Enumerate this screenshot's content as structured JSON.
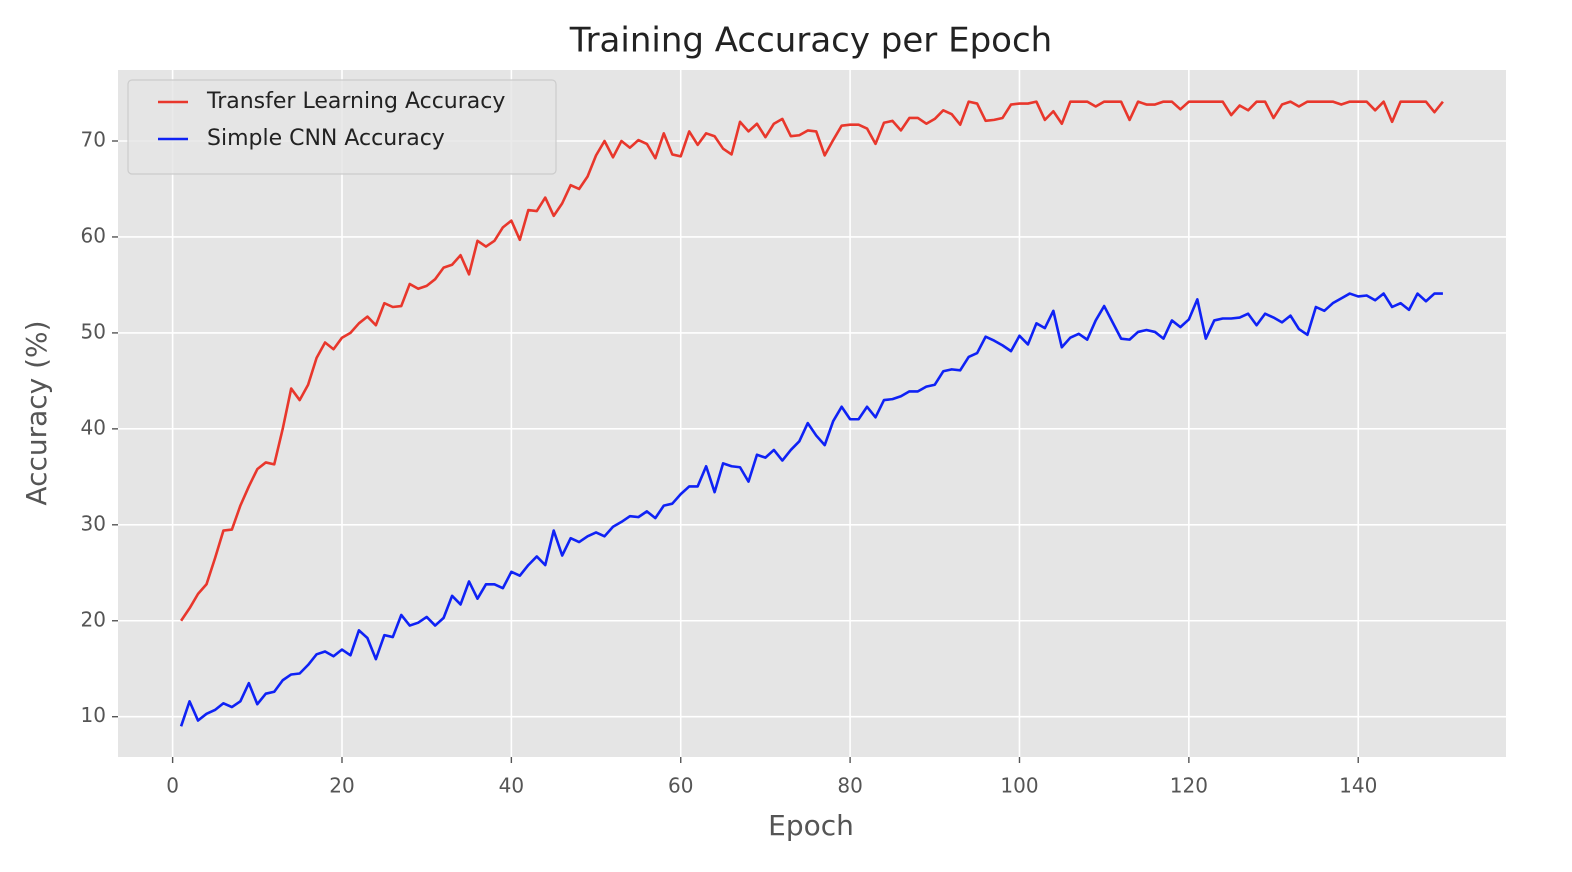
{
  "chart_data": {
    "type": "line",
    "title": "Training Accuracy per Epoch",
    "x_label": "Epoch",
    "y_label": "Accuracy (%)",
    "x": [
      1,
      2,
      3,
      4,
      5,
      6,
      7,
      8,
      9,
      10,
      11,
      12,
      13,
      14,
      15,
      16,
      17,
      18,
      19,
      20,
      21,
      22,
      23,
      24,
      25,
      26,
      27,
      28,
      29,
      30,
      31,
      32,
      33,
      34,
      35,
      36,
      37,
      38,
      39,
      40,
      41,
      42,
      43,
      44,
      45,
      46,
      47,
      48,
      49,
      50,
      51,
      52,
      53,
      54,
      55,
      56,
      57,
      58,
      59,
      60,
      61,
      62,
      63,
      64,
      65,
      66,
      67,
      68,
      69,
      70,
      71,
      72,
      73,
      74,
      75,
      76,
      77,
      78,
      79,
      80,
      81,
      82,
      83,
      84,
      85,
      86,
      87,
      88,
      89,
      90,
      91,
      92,
      93,
      94,
      95,
      96,
      97,
      98,
      99,
      100,
      101,
      102,
      103,
      104,
      105,
      106,
      107,
      108,
      109,
      110,
      111,
      112,
      113,
      114,
      115,
      116,
      117,
      118,
      119,
      120,
      121,
      122,
      123,
      124,
      125,
      126,
      127,
      128,
      129,
      130,
      131,
      132,
      133,
      134,
      135,
      136,
      137,
      138,
      139,
      140,
      141,
      142,
      143,
      144,
      145,
      146,
      147,
      148,
      149,
      150
    ],
    "series": [
      {
        "name": "Transfer Learning Accuracy",
        "color": "#e8372c",
        "values": [
          20,
          21.3,
          22.8,
          23.8,
          26.5,
          29.4,
          29.5,
          32,
          34,
          35.8,
          36.5,
          36.3,
          40,
          44.2,
          43,
          44.6,
          47.4,
          49,
          48.3,
          49.5,
          50,
          51,
          51.7,
          50.8,
          53.1,
          52.7,
          52.8,
          55.1,
          54.6,
          54.9,
          55.6,
          56.8,
          57.1,
          58.1,
          56.1,
          59.6,
          59,
          59.6,
          61,
          61.7,
          59.7,
          62.8,
          62.7,
          64.1,
          62.2,
          63.5,
          65.4,
          65,
          66.3,
          68.5,
          70,
          68.3,
          70,
          69.3,
          70.1,
          69.7,
          68.2,
          70.8,
          68.6,
          68.4,
          71,
          69.6,
          70.8,
          70.5,
          69.2,
          68.6,
          72,
          71,
          71.8,
          70.4,
          71.8,
          72.3,
          70.5,
          70.6,
          71.1,
          71,
          68.5,
          70.1,
          71.6,
          71.7,
          71.7,
          71.3,
          69.7,
          71.9,
          72.1,
          71.1,
          72.4,
          72.4,
          71.8,
          72.3,
          73.2,
          72.8,
          71.7,
          74.1,
          73.9,
          72.1,
          72.2,
          72.4,
          73.8,
          73.9,
          73.9,
          74.1,
          72.2,
          73.1,
          71.8,
          74.1,
          74.1,
          74.1,
          73.6,
          74.1,
          74.1,
          74.1,
          72.2,
          74.1,
          73.8,
          73.8,
          74.1,
          74.1,
          73.3,
          74.1,
          74.1,
          74.1,
          74.1,
          74.1,
          72.7,
          73.7,
          73.2,
          74.1,
          74.1,
          72.4,
          73.8,
          74.1,
          73.6,
          74.1,
          74.1,
          74.1,
          74.1,
          73.8,
          74.1,
          74.1,
          74.1,
          73.2,
          74.1,
          72,
          74.1,
          74.1,
          74.1,
          74.1,
          73,
          74.1
        ]
      },
      {
        "name": "Simple CNN Accuracy",
        "color": "#0f22f5",
        "values": [
          9,
          11.6,
          9.6,
          10.3,
          10.7,
          11.4,
          11,
          11.6,
          13.5,
          11.3,
          12.4,
          12.6,
          13.8,
          14.4,
          14.5,
          15.4,
          16.5,
          16.8,
          16.3,
          17,
          16.4,
          19,
          18.2,
          16,
          18.5,
          18.3,
          20.6,
          19.5,
          19.8,
          20.4,
          19.5,
          20.3,
          22.6,
          21.7,
          24.1,
          22.3,
          23.8,
          23.8,
          23.4,
          25.1,
          24.7,
          25.8,
          26.7,
          25.8,
          29.4,
          26.8,
          28.6,
          28.2,
          28.8,
          29.2,
          28.8,
          29.8,
          30.3,
          30.9,
          30.8,
          31.4,
          30.7,
          32,
          32.2,
          33.2,
          34,
          34,
          36.1,
          33.4,
          36.4,
          36.1,
          36,
          34.5,
          37.3,
          37,
          37.8,
          36.7,
          37.8,
          38.7,
          40.6,
          39.3,
          38.3,
          40.8,
          42.3,
          41,
          41,
          42.3,
          41.2,
          43,
          43.1,
          43.4,
          43.9,
          43.9,
          44.4,
          44.6,
          46,
          46.2,
          46.1,
          47.5,
          47.9,
          49.6,
          49.2,
          48.7,
          48.1,
          49.7,
          48.8,
          51,
          50.5,
          52.3,
          48.5,
          49.5,
          49.9,
          49.3,
          51.3,
          52.8,
          51.1,
          49.4,
          49.3,
          50.1,
          50.3,
          50.1,
          49.4,
          51.3,
          50.6,
          51.4,
          53.5,
          49.4,
          51.3,
          51.5,
          51.5,
          51.6,
          52,
          50.8,
          52,
          51.6,
          51.1,
          51.8,
          50.4,
          49.8,
          52.7,
          52.3,
          53.1,
          53.6,
          54.1,
          53.8,
          53.9,
          53.4,
          54.1,
          52.7,
          53.1,
          52.4,
          54.1,
          53.3,
          54.1,
          54.1
        ]
      }
    ],
    "xlim": [
      -6.45,
      157.45
    ],
    "ylim": [
      5.8,
      77.4
    ],
    "xticks": [
      0,
      20,
      40,
      60,
      80,
      100,
      120,
      140
    ],
    "yticks": [
      10,
      20,
      30,
      40,
      50,
      60,
      70
    ],
    "grid": true,
    "legend": "upper left"
  }
}
